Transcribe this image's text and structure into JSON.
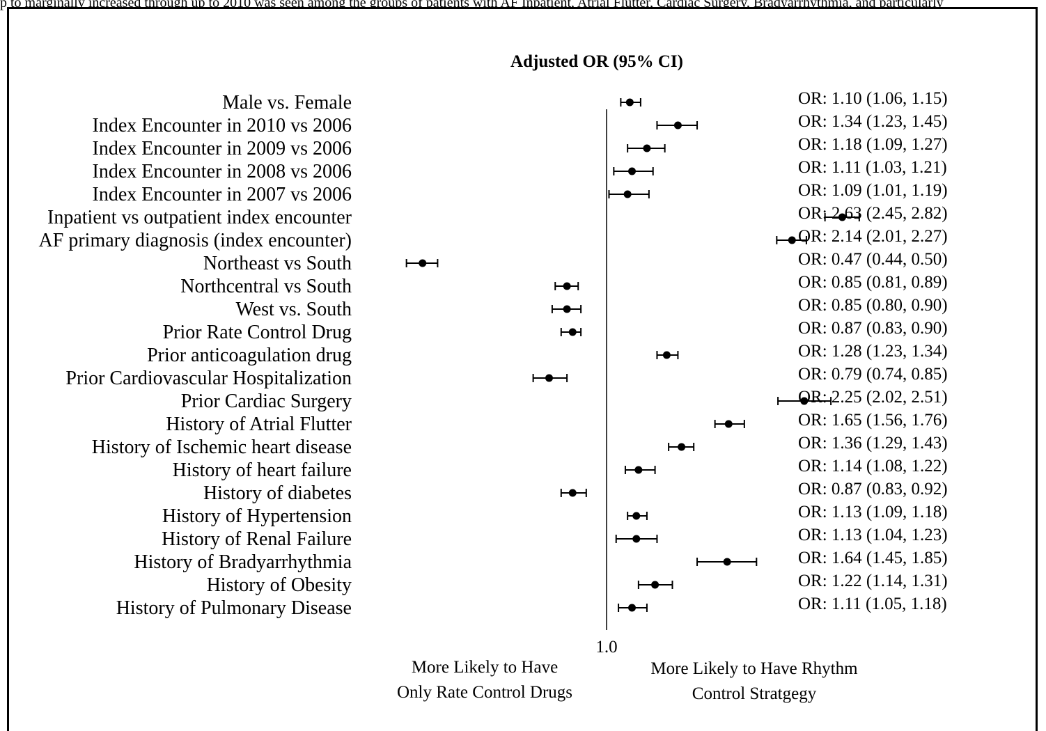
{
  "chart_data": {
    "type": "forest",
    "title": "Adjusted OR (95% CI)",
    "reference_value": 1.0,
    "reference_label": "1.0",
    "scale": "log",
    "xlim": [
      0.4,
      2.9
    ],
    "left_direction_label": [
      "More Likely to Have",
      "Only Rate Control Drugs"
    ],
    "right_direction_label": [
      "More Likely to Have Rhythm",
      "Control Stratgegy"
    ],
    "rows": [
      {
        "label": "Male vs. Female",
        "or": 1.1,
        "lo": 1.06,
        "hi": 1.15,
        "text": "OR: 1.10 (1.06, 1.15)"
      },
      {
        "label": "Index Encounter in 2010 vs 2006",
        "or": 1.34,
        "lo": 1.23,
        "hi": 1.45,
        "text": "OR: 1.34 (1.23, 1.45)"
      },
      {
        "label": "Index Encounter in 2009 vs 2006",
        "or": 1.18,
        "lo": 1.09,
        "hi": 1.27,
        "text": "OR: 1.18 (1.09, 1.27)"
      },
      {
        "label": "Index Encounter in 2008 vs 2006",
        "or": 1.11,
        "lo": 1.03,
        "hi": 1.21,
        "text": "OR: 1.11 (1.03, 1.21)"
      },
      {
        "label": "Index Encounter in 2007 vs 2006",
        "or": 1.09,
        "lo": 1.01,
        "hi": 1.19,
        "text": "OR: 1.09 (1.01, 1.19)"
      },
      {
        "label": "Inpatient vs outpatient index encounter",
        "or": 2.63,
        "lo": 2.45,
        "hi": 2.82,
        "text": "OR: 2.63 (2.45, 2.82)"
      },
      {
        "label": "AF primary diagnosis (index encounter)",
        "or": 2.14,
        "lo": 2.01,
        "hi": 2.27,
        "text": "OR: 2.14 (2.01, 2.27)"
      },
      {
        "label": "Northeast vs South",
        "or": 0.47,
        "lo": 0.44,
        "hi": 0.5,
        "text": "OR: 0.47 (0.44, 0.50)"
      },
      {
        "label": "Northcentral vs South",
        "or": 0.85,
        "lo": 0.81,
        "hi": 0.89,
        "text": "OR: 0.85 (0.81, 0.89)"
      },
      {
        "label": "West vs. South",
        "or": 0.85,
        "lo": 0.8,
        "hi": 0.9,
        "text": "OR: 0.85 (0.80, 0.90)"
      },
      {
        "label": "Prior Rate Control Drug",
        "or": 0.87,
        "lo": 0.83,
        "hi": 0.9,
        "text": "OR: 0.87 (0.83, 0.90)"
      },
      {
        "label": "Prior anticoagulation drug",
        "or": 1.28,
        "lo": 1.23,
        "hi": 1.34,
        "text": "OR: 1.28 (1.23, 1.34)"
      },
      {
        "label": "Prior Cardiovascular Hospitalization",
        "or": 0.79,
        "lo": 0.74,
        "hi": 0.85,
        "text": "OR: 0.79 (0.74, 0.85)"
      },
      {
        "label": "Prior Cardiac Surgery",
        "or": 2.25,
        "lo": 2.02,
        "hi": 2.51,
        "text": "OR: 2.25 (2.02, 2.51)"
      },
      {
        "label": "History of Atrial Flutter",
        "or": 1.65,
        "lo": 1.56,
        "hi": 1.76,
        "text": "OR: 1.65 (1.56, 1.76)"
      },
      {
        "label": "History of Ischemic heart disease",
        "or": 1.36,
        "lo": 1.29,
        "hi": 1.43,
        "text": "OR: 1.36 (1.29, 1.43)"
      },
      {
        "label": "History of heart failure",
        "or": 1.14,
        "lo": 1.08,
        "hi": 1.22,
        "text": "OR: 1.14 (1.08, 1.22)"
      },
      {
        "label": "History of diabetes",
        "or": 0.87,
        "lo": 0.83,
        "hi": 0.92,
        "text": "OR: 0.87 (0.83, 0.92)"
      },
      {
        "label": "History of Hypertension",
        "or": 1.13,
        "lo": 1.09,
        "hi": 1.18,
        "text": "OR: 1.13 (1.09, 1.18)"
      },
      {
        "label": "History of Renal Failure",
        "or": 1.13,
        "lo": 1.04,
        "hi": 1.23,
        "text": "OR: 1.13 (1.04, 1.23)"
      },
      {
        "label": "History of Bradyarrhythmia",
        "or": 1.64,
        "lo": 1.45,
        "hi": 1.85,
        "text": "OR: 1.64 (1.45, 1.85)"
      },
      {
        "label": "History of Obesity",
        "or": 1.22,
        "lo": 1.14,
        "hi": 1.31,
        "text": "OR: 1.22 (1.14, 1.31)"
      },
      {
        "label": "History of Pulmonary Disease",
        "or": 1.11,
        "lo": 1.05,
        "hi": 1.18,
        "text": "OR: 1.11 (1.05, 1.18)"
      }
    ]
  },
  "caption_fragment": "p to marginally increased through up to 2010 was seen among the groups of patients with AF Inpatient, Atrial Flutter, Cardiac Surgery, Bradyarrhythmia, and particularly"
}
